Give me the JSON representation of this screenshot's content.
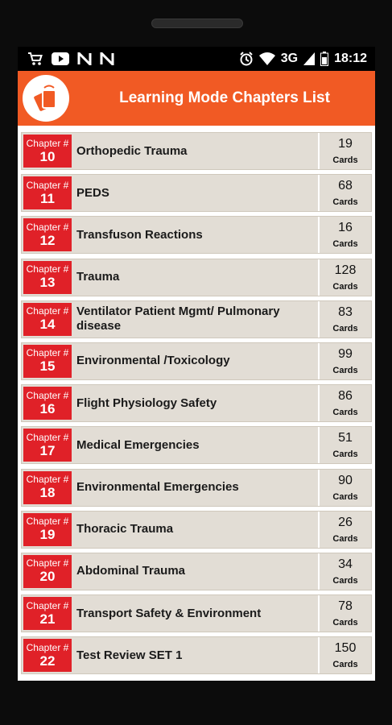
{
  "status_bar": {
    "left_icons": [
      "cart-icon",
      "youtube-icon",
      "n-icon",
      "n-icon"
    ],
    "network": "3G",
    "time": "18:12"
  },
  "header": {
    "title": "Learning Mode Chapters List",
    "accent_color": "#f15a24"
  },
  "chip_color": "#e02128",
  "chapters": [
    {
      "label": "Chapter #",
      "number": "10",
      "title": "Orthopedic Trauma",
      "count": "19",
      "count_label": "Cards"
    },
    {
      "label": "Chapter #",
      "number": "11",
      "title": "PEDS",
      "count": "68",
      "count_label": "Cards"
    },
    {
      "label": "Chapter #",
      "number": "12",
      "title": "Transfuson Reactions",
      "count": "16",
      "count_label": "Cards"
    },
    {
      "label": "Chapter #",
      "number": "13",
      "title": "Trauma",
      "count": "128",
      "count_label": "Cards"
    },
    {
      "label": "Chapter #",
      "number": "14",
      "title": "Ventilator Patient Mgmt/ Pulmonary disease",
      "count": "83",
      "count_label": "Cards"
    },
    {
      "label": "Chapter #",
      "number": "15",
      "title": "Environmental /Toxicology",
      "count": "99",
      "count_label": "Cards"
    },
    {
      "label": "Chapter #",
      "number": "16",
      "title": "Flight Physiology Safety",
      "count": "86",
      "count_label": "Cards"
    },
    {
      "label": "Chapter #",
      "number": "17",
      "title": "Medical Emergencies",
      "count": "51",
      "count_label": "Cards"
    },
    {
      "label": "Chapter #",
      "number": "18",
      "title": "Environmental Emergencies",
      "count": "90",
      "count_label": "Cards"
    },
    {
      "label": "Chapter #",
      "number": "19",
      "title": "Thoracic Trauma",
      "count": "26",
      "count_label": "Cards"
    },
    {
      "label": "Chapter #",
      "number": "20",
      "title": "Abdominal Trauma",
      "count": "34",
      "count_label": "Cards"
    },
    {
      "label": "Chapter #",
      "number": "21",
      "title": "Transport Safety & Environment",
      "count": "78",
      "count_label": "Cards"
    },
    {
      "label": "Chapter #",
      "number": "22",
      "title": "Test Review SET 1",
      "count": "150",
      "count_label": "Cards"
    }
  ]
}
